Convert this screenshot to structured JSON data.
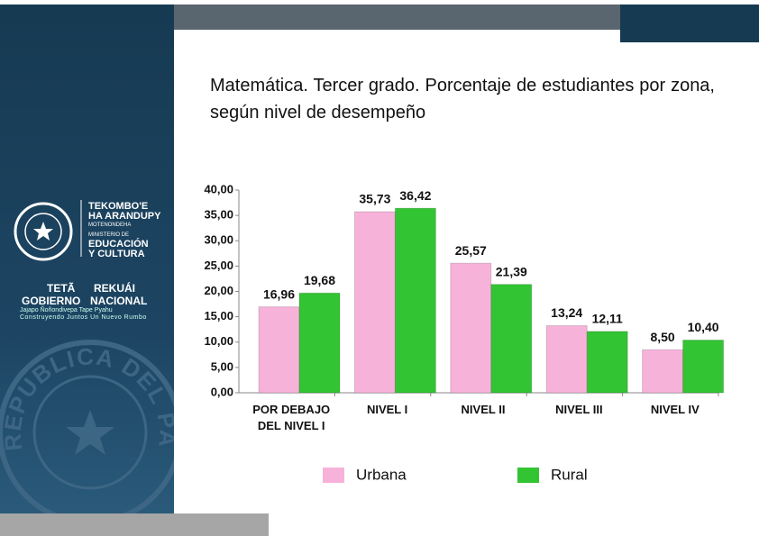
{
  "chart_data": {
    "type": "bar",
    "title": "Matemática. Tercer grado. Porcentaje de estudiantes por zona,  según nivel de desempeño",
    "categories": [
      "POR DEBAJO DEL NIVEL I",
      "NIVEL I",
      "NIVEL II",
      "NIVEL III",
      "NIVEL IV"
    ],
    "series": [
      {
        "name": "Urbana",
        "color": "#f7b2da",
        "values": [
          16.96,
          35.73,
          25.57,
          13.24,
          8.5
        ],
        "value_labels": [
          "16,96",
          "35,73",
          "25,57",
          "13,24",
          "8,50"
        ]
      },
      {
        "name": "Rural",
        "color": "#33c433",
        "values": [
          19.68,
          36.42,
          21.39,
          12.11,
          10.4
        ],
        "value_labels": [
          "19,68",
          "36,42",
          "21,39",
          "12,11",
          "10,40"
        ]
      }
    ],
    "ylim": [
      0,
      40
    ],
    "yticks": [
      {
        "value": 0,
        "label": "0,00"
      },
      {
        "value": 5,
        "label": "5,00"
      },
      {
        "value": 10,
        "label": "10,00"
      },
      {
        "value": 15,
        "label": "15,00"
      },
      {
        "value": 20,
        "label": "20,00"
      },
      {
        "value": 25,
        "label": "25,00"
      },
      {
        "value": 30,
        "label": "30,00"
      },
      {
        "value": 35,
        "label": "35,00"
      },
      {
        "value": 40,
        "label": "40,00"
      }
    ],
    "grid": false
  },
  "sidebar": {
    "ministry": [
      "TEKOMBO'E",
      "HA ARANDUPY",
      "MOTENONDEHA",
      "MINISTERIO DE",
      "EDUCACIÓN",
      "Y CULTURA"
    ],
    "government": [
      "TETÃ",
      "REKUÁI",
      "GOBIERNO",
      "NACIONAL"
    ],
    "slogan": [
      "Jajapo Ñoñondivepa Tape Pyahu",
      "Construyendo Juntos Un Nuevo Rumbo"
    ],
    "seal": "REPUBLICA DEL PARAGUAY"
  }
}
